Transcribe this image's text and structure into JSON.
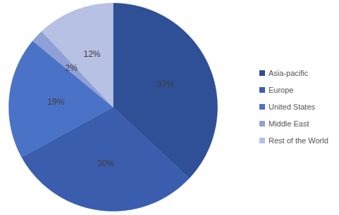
{
  "chart_data": {
    "type": "pie",
    "categories": [
      "Asia-pacific",
      "Europe",
      "United States",
      "Middle East",
      "Rest of the World"
    ],
    "values": [
      37,
      30,
      19,
      2,
      12
    ],
    "colors": [
      "#2f4f96",
      "#3a5dae",
      "#4a73c7",
      "#8fa0d6",
      "#b7c1e3"
    ],
    "data_labels": true,
    "value_labels": [
      "37%",
      "30%",
      "19%",
      "2%",
      "12%"
    ],
    "legend": "right"
  }
}
